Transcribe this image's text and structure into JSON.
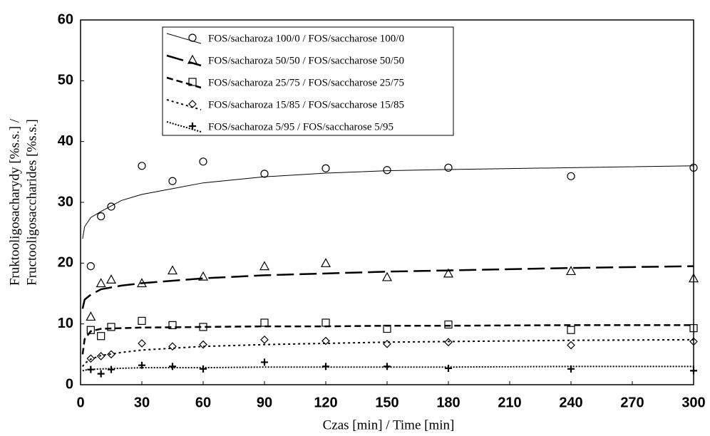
{
  "chart_data": {
    "type": "scatter",
    "xlabel": "Czas [min] / Time [min]",
    "ylabel": [
      "Fruktooligosacharydy [%s.s.] /",
      "Fructooligosaccharides [%s.s.]"
    ],
    "xlim": [
      0,
      300
    ],
    "xticks": [
      0,
      30,
      60,
      90,
      120,
      150,
      180,
      210,
      240,
      270,
      300
    ],
    "ylim": [
      0,
      60
    ],
    "yticks": [
      0,
      10,
      20,
      30,
      40,
      50,
      60
    ],
    "x": [
      5,
      10,
      15,
      30,
      45,
      60,
      90,
      120,
      150,
      180,
      240,
      300
    ],
    "color": "#000000",
    "series": [
      {
        "name": "FOS/sacharoza 100/0 / FOS/saccharose 100/0",
        "marker": "circle",
        "values": [
          19.5,
          27.7,
          29.3,
          36,
          33.5,
          36.7,
          34.7,
          35.6,
          35.3,
          35.7,
          34.3,
          35.7
        ],
        "fit": {
          "x": [
            1,
            2,
            5,
            10,
            20,
            30,
            60,
            90,
            120,
            150,
            180,
            240,
            300
          ],
          "values": [
            24,
            26,
            27.5,
            28.5,
            30.3,
            31.3,
            33.2,
            34.2,
            34.8,
            35.2,
            35.4,
            35.7,
            36
          ]
        }
      },
      {
        "name": "FOS/sacharoza 50/50 / FOS/saccharose 50/50",
        "marker": "triangle",
        "values": [
          11.2,
          16.7,
          17.3,
          16.7,
          18.8,
          17.8,
          19.5,
          20,
          17.7,
          18.3,
          18.7,
          17.5
        ],
        "fit": {
          "x": [
            1,
            2,
            5,
            10,
            20,
            30,
            60,
            90,
            120,
            150,
            180,
            240,
            300
          ],
          "values": [
            12.5,
            14,
            14.8,
            15.7,
            16.3,
            16.7,
            17.5,
            18,
            18.3,
            18.6,
            18.8,
            19.2,
            19.5
          ]
        }
      },
      {
        "name": "FOS/sacharoza 25/75 / FOS/saccharose 25/75",
        "marker": "square",
        "values": [
          9,
          8,
          9.5,
          10.5,
          9.8,
          9.5,
          10.2,
          10.2,
          9.2,
          9.9,
          9,
          9.3
        ],
        "fit": {
          "x": [
            1,
            2,
            5,
            10,
            20,
            30,
            60,
            90,
            120,
            150,
            180,
            240,
            300
          ],
          "values": [
            5,
            7.5,
            8.8,
            9.2,
            9.3,
            9.4,
            9.5,
            9.6,
            9.6,
            9.7,
            9.7,
            9.8,
            9.8
          ]
        }
      },
      {
        "name": "FOS/sacharoza 15/85 / FOS/saccharose 15/85",
        "marker": "diamond",
        "values": [
          4.3,
          4.7,
          5,
          6.8,
          6.3,
          6.6,
          7.4,
          7.2,
          6.7,
          7,
          6.5,
          7.1
        ],
        "fit": {
          "x": [
            1,
            2,
            5,
            10,
            20,
            30,
            60,
            90,
            120,
            150,
            180,
            240,
            300
          ],
          "values": [
            3,
            3.5,
            4.2,
            4.8,
            5.3,
            5.7,
            6.3,
            6.6,
            6.8,
            7,
            7.1,
            7.3,
            7.4
          ]
        }
      },
      {
        "name": "FOS/sacharoza 5/95 / FOS/saccharose 5/95",
        "marker": "plus",
        "values": [
          2.5,
          1.8,
          2.5,
          3.2,
          3,
          2.6,
          3.7,
          3,
          3,
          2.7,
          2.6,
          2.3
        ],
        "fit": {
          "x": [
            1,
            2,
            5,
            10,
            20,
            30,
            60,
            90,
            120,
            150,
            180,
            240,
            300
          ],
          "values": [
            2.3,
            2.4,
            2.5,
            2.6,
            2.7,
            2.8,
            2.8,
            2.9,
            2.9,
            2.9,
            2.9,
            3,
            3
          ]
        }
      }
    ]
  }
}
